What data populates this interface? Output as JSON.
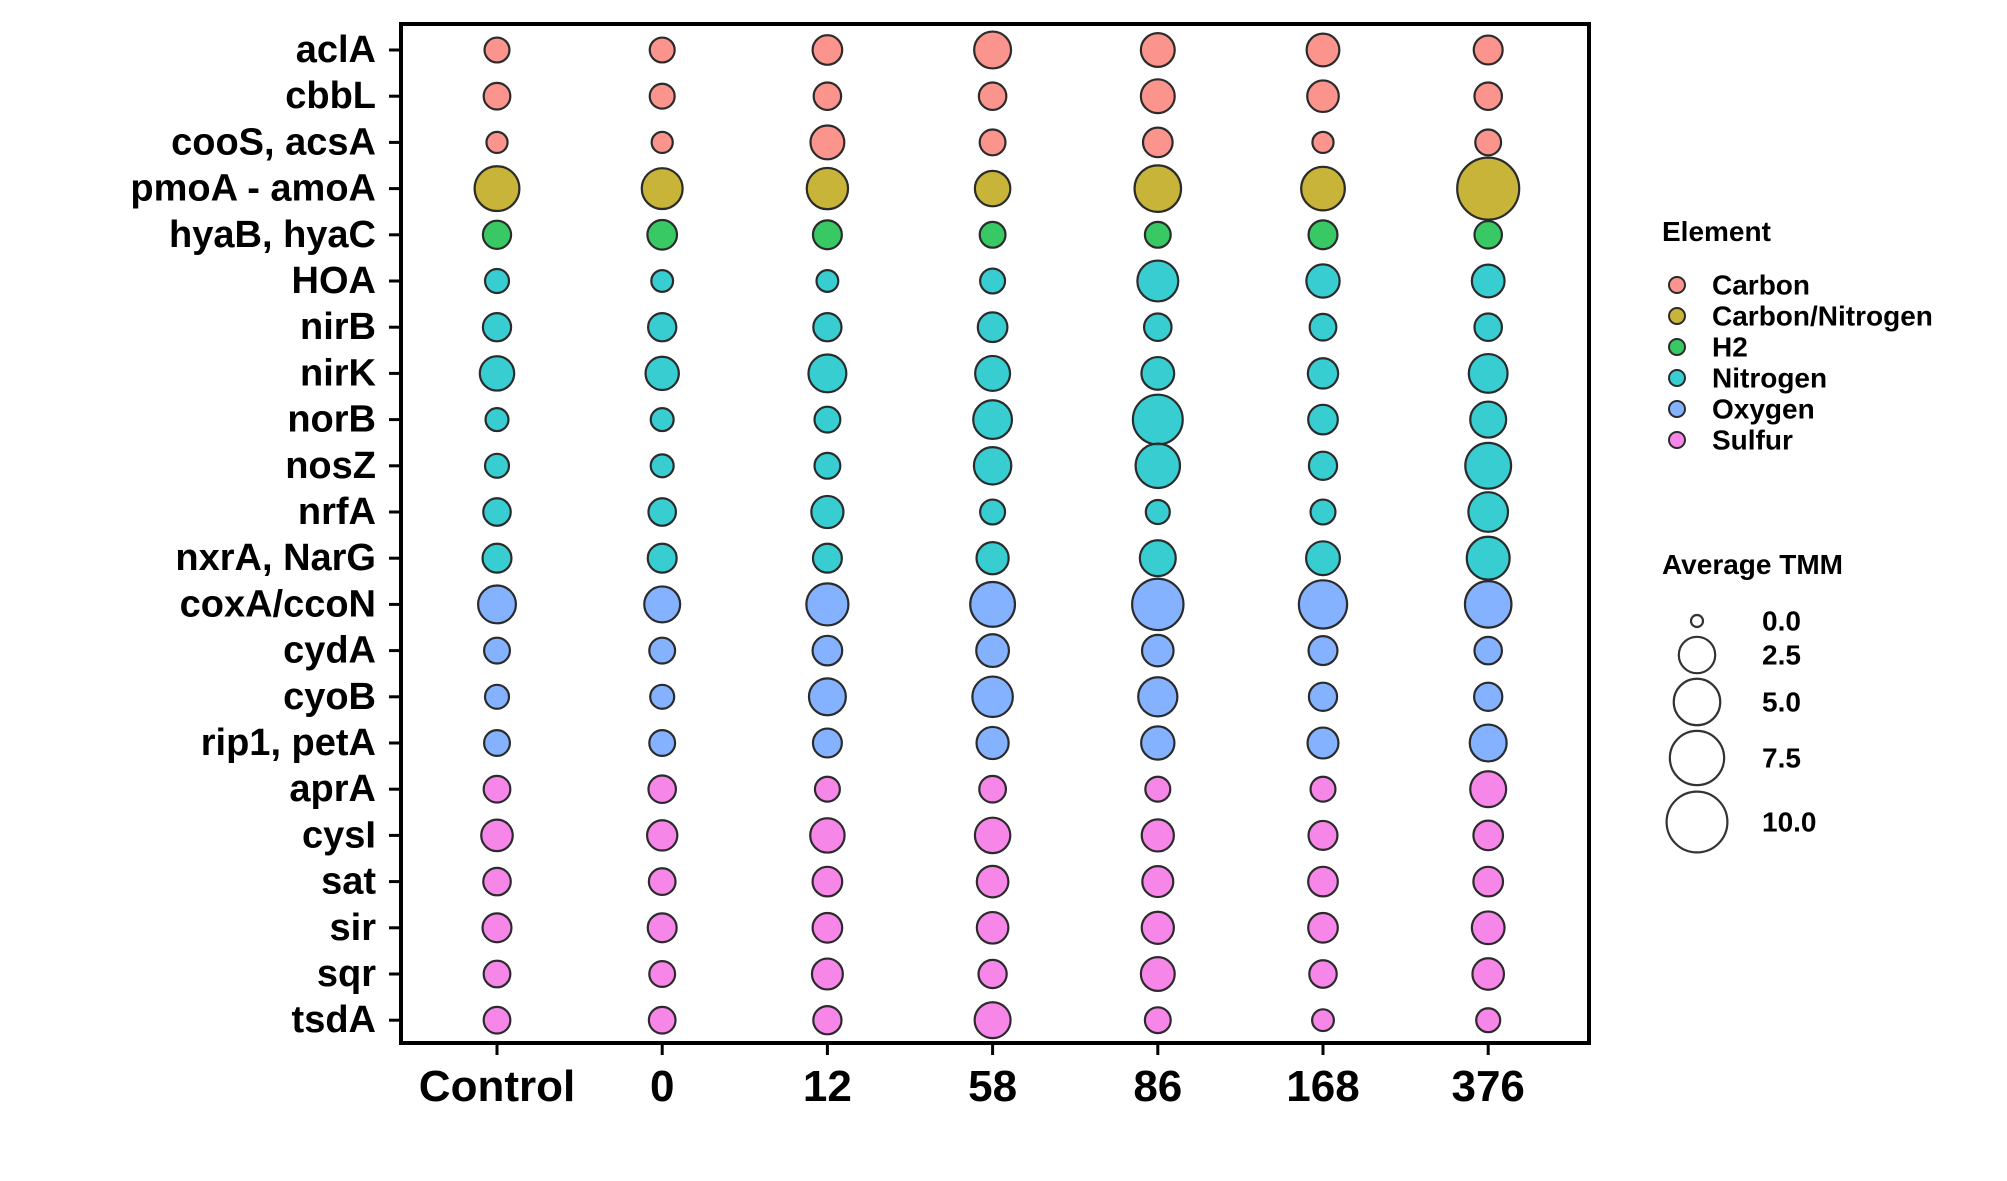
{
  "chart_data": {
    "type": "scatter",
    "chart_subtype": "dot-plot",
    "title": "",
    "xlabel": "",
    "ylabel": "",
    "x_categories": [
      "Control",
      "0",
      "12",
      "58",
      "86",
      "168",
      "376"
    ],
    "genes": [
      {
        "name": "aclA",
        "element": "Carbon",
        "values": [
          0.7,
          0.7,
          1.3,
          2.6,
          2.0,
          1.8,
          1.2
        ]
      },
      {
        "name": "cbbL",
        "element": "Carbon",
        "values": [
          0.9,
          0.7,
          1.0,
          1.0,
          2.0,
          1.6,
          1.0
        ]
      },
      {
        "name": "cooS, acsA",
        "element": "Carbon",
        "values": [
          0.35,
          0.35,
          2.0,
          0.8,
          1.3,
          0.35,
          0.8
        ]
      },
      {
        "name": "pmoA - amoA",
        "element": "Carbon/Nitrogen",
        "values": [
          4.5,
          3.5,
          3.6,
          2.3,
          5.0,
          4.2,
          10.5
        ]
      },
      {
        "name": "hyaB, hyaC",
        "element": "H2",
        "values": [
          1.1,
          1.3,
          1.2,
          0.8,
          0.8,
          1.2,
          1.0
        ]
      },
      {
        "name": "HOA",
        "element": "Nitrogen",
        "values": [
          0.6,
          0.4,
          0.4,
          0.7,
          3.5,
          1.9,
          1.8
        ]
      },
      {
        "name": "nirB",
        "element": "Nitrogen",
        "values": [
          1.1,
          1.1,
          1.1,
          1.3,
          1.0,
          0.9,
          1.0
        ]
      },
      {
        "name": "nirK",
        "element": "Nitrogen",
        "values": [
          2.1,
          1.9,
          2.8,
          2.2,
          1.8,
          1.4,
          3.0
        ]
      },
      {
        "name": "norB",
        "element": "Nitrogen",
        "values": [
          0.5,
          0.5,
          0.8,
          3.0,
          6.0,
          1.3,
          2.4
        ]
      },
      {
        "name": "nosZ",
        "element": "Nitrogen",
        "values": [
          0.6,
          0.5,
          0.8,
          2.7,
          4.4,
          1.1,
          4.8
        ]
      },
      {
        "name": "nrfA",
        "element": "Nitrogen",
        "values": [
          1.0,
          1.0,
          1.7,
          0.7,
          0.6,
          0.7,
          3.2
        ]
      },
      {
        "name": "nxrA, NarG",
        "element": "Nitrogen",
        "values": [
          1.2,
          1.2,
          1.2,
          1.7,
          2.4,
          2.0,
          4.0
        ]
      },
      {
        "name": "coxA/ccoN",
        "element": "Oxygen",
        "values": [
          2.8,
          2.4,
          3.8,
          4.5,
          6.5,
          5.5,
          5.0
        ]
      },
      {
        "name": "cydA",
        "element": "Oxygen",
        "values": [
          0.8,
          0.8,
          1.3,
          1.8,
          1.6,
          1.2,
          1.0
        ]
      },
      {
        "name": "cyoB",
        "element": "Oxygen",
        "values": [
          0.6,
          0.6,
          2.6,
          3.4,
          3.1,
          1.1,
          1.1
        ]
      },
      {
        "name": "rip1, petA",
        "element": "Oxygen",
        "values": [
          0.8,
          0.8,
          1.2,
          1.7,
          1.9,
          1.5,
          2.6
        ]
      },
      {
        "name": "aprA",
        "element": "Sulfur",
        "values": [
          0.9,
          1.0,
          0.7,
          0.9,
          0.7,
          0.7,
          2.4
        ]
      },
      {
        "name": "cysI",
        "element": "Sulfur",
        "values": [
          1.6,
          1.4,
          2.1,
          2.3,
          1.7,
          1.2,
          1.3
        ]
      },
      {
        "name": "sat",
        "element": "Sulfur",
        "values": [
          1.0,
          0.9,
          1.3,
          1.6,
          1.5,
          1.3,
          1.3
        ]
      },
      {
        "name": "sir",
        "element": "Sulfur",
        "values": [
          1.2,
          1.2,
          1.3,
          1.6,
          1.7,
          1.3,
          1.8
        ]
      },
      {
        "name": "sqr",
        "element": "Sulfur",
        "values": [
          0.9,
          0.8,
          1.5,
          1.1,
          2.0,
          1.0,
          1.6
        ]
      },
      {
        "name": "tsdA",
        "element": "Sulfur",
        "values": [
          0.9,
          0.9,
          1.1,
          2.4,
          0.8,
          0.4,
          0.6
        ]
      }
    ],
    "legend": {
      "color_title": "Element",
      "elements": [
        {
          "name": "Carbon",
          "color": "#F8766D"
        },
        {
          "name": "Carbon/Nitrogen",
          "color": "#B79F00"
        },
        {
          "name": "H2",
          "color": "#00BA38"
        },
        {
          "name": "Nitrogen",
          "color": "#00BFC4"
        },
        {
          "name": "Oxygen",
          "color": "#619CFF"
        },
        {
          "name": "Sulfur",
          "color": "#F564E3"
        }
      ],
      "size_title": "Average TMM",
      "size_breaks": [
        {
          "value": 0.0,
          "label": "0.0"
        },
        {
          "value": 2.5,
          "label": "2.5"
        },
        {
          "value": 5.0,
          "label": "5.0"
        },
        {
          "value": 7.5,
          "label": "7.5"
        },
        {
          "value": 10.0,
          "label": "10.0"
        }
      ],
      "placement": "right"
    },
    "grid": false
  }
}
